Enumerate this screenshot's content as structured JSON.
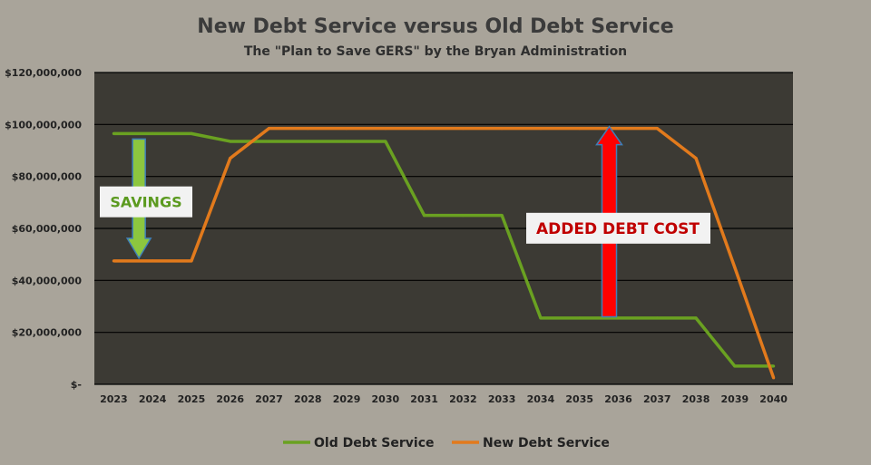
{
  "chart_data": {
    "type": "line",
    "title": "New Debt Service versus Old Debt Service",
    "subtitle": "The \"Plan to Save GERS\" by the Bryan Administration",
    "x": [
      "2023",
      "2024",
      "2025",
      "2026",
      "2027",
      "2028",
      "2029",
      "2030",
      "2031",
      "2032",
      "2033",
      "2034",
      "2035",
      "2036",
      "2037",
      "2038",
      "2039",
      "2040"
    ],
    "ylim": [
      0,
      120000000
    ],
    "yticks": [
      {
        "value": 0,
        "label": "$-"
      },
      {
        "value": 20000000,
        "label": "$20,000,000"
      },
      {
        "value": 40000000,
        "label": "$40,000,000"
      },
      {
        "value": 60000000,
        "label": "$60,000,000"
      },
      {
        "value": 80000000,
        "label": "$80,000,000"
      },
      {
        "value": 100000000,
        "label": "$100,000,000"
      },
      {
        "value": 120000000,
        "label": "$120,000,000"
      }
    ],
    "grid": true,
    "legend_position": "bottom",
    "series": [
      {
        "name": "Old Debt Service",
        "color": "#6aa121",
        "values": [
          96500000,
          96500000,
          96500000,
          93500000,
          93500000,
          93500000,
          93500000,
          93500000,
          65000000,
          65000000,
          65000000,
          25500000,
          25500000,
          25500000,
          25500000,
          25500000,
          7000000,
          7000000
        ]
      },
      {
        "name": "New Debt Service",
        "color": "#e27a1c",
        "values": [
          47500000,
          47500000,
          47500000,
          87000000,
          98500000,
          98500000,
          98500000,
          98500000,
          98500000,
          98500000,
          98500000,
          98500000,
          98500000,
          98500000,
          98500000,
          87000000,
          45000000,
          2500000
        ]
      }
    ],
    "annotations": {
      "savings": {
        "label": "SAVINGS",
        "from_x": "2024",
        "from_y": 96500000,
        "to_y": 47500000,
        "color": "#8cc63f"
      },
      "added_cost": {
        "label": "ADDED DEBT COST",
        "x": "2036",
        "from_y": 26000000,
        "to_y": 98500000,
        "color": "#ff0000"
      }
    }
  }
}
